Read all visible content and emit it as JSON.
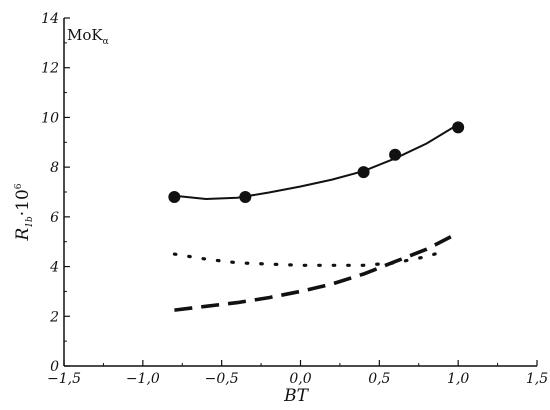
{
  "chart_data": {
    "type": "line",
    "title": "",
    "annotation": {
      "main": "MoK",
      "sub": "α"
    },
    "xlabel": "BT",
    "ylabel": {
      "main": "R",
      "sub": "1b",
      "middle": "·10",
      "sup": "6"
    },
    "xlim": [
      -1.5,
      1.5
    ],
    "ylim": [
      0,
      14
    ],
    "x_ticks": [
      -1.5,
      -1.0,
      -0.5,
      0.0,
      0.5,
      1.0,
      1.5
    ],
    "x_tick_labels": [
      "−1,5",
      "−1,0",
      "−0,5",
      "0,0",
      "0,5",
      "1,0",
      "1,5"
    ],
    "y_ticks": [
      0,
      2,
      4,
      6,
      8,
      10,
      12,
      14
    ],
    "y_tick_labels": [
      "0",
      "2",
      "4",
      "6",
      "8",
      "10",
      "12",
      "14"
    ],
    "grid": false,
    "series": [
      {
        "style": "solid-with-markers",
        "points": [
          {
            "x": -0.8,
            "y": 6.8
          },
          {
            "x": -0.35,
            "y": 6.8
          },
          {
            "x": 0.4,
            "y": 7.8
          },
          {
            "x": 0.6,
            "y": 8.5
          },
          {
            "x": 1.0,
            "y": 9.6
          }
        ],
        "curve_x": [
          -0.8,
          -0.6,
          -0.4,
          -0.2,
          0.0,
          0.2,
          0.4,
          0.6,
          0.8,
          1.0
        ],
        "curve_y": [
          6.85,
          6.72,
          6.77,
          6.98,
          7.22,
          7.5,
          7.84,
          8.35,
          8.95,
          9.72
        ]
      },
      {
        "style": "dotted",
        "x": [
          -0.8,
          -0.6,
          -0.4,
          -0.2,
          0.0,
          0.2,
          0.4,
          0.6,
          0.8,
          0.9
        ],
        "y": [
          4.5,
          4.3,
          4.15,
          4.1,
          4.05,
          4.05,
          4.05,
          4.15,
          4.4,
          4.6
        ]
      },
      {
        "style": "dashed",
        "x": [
          -0.8,
          -0.6,
          -0.4,
          -0.2,
          0.0,
          0.2,
          0.4,
          0.6,
          0.8,
          1.0
        ],
        "y": [
          2.25,
          2.4,
          2.55,
          2.75,
          3.0,
          3.3,
          3.7,
          4.2,
          4.7,
          5.35
        ]
      }
    ]
  }
}
